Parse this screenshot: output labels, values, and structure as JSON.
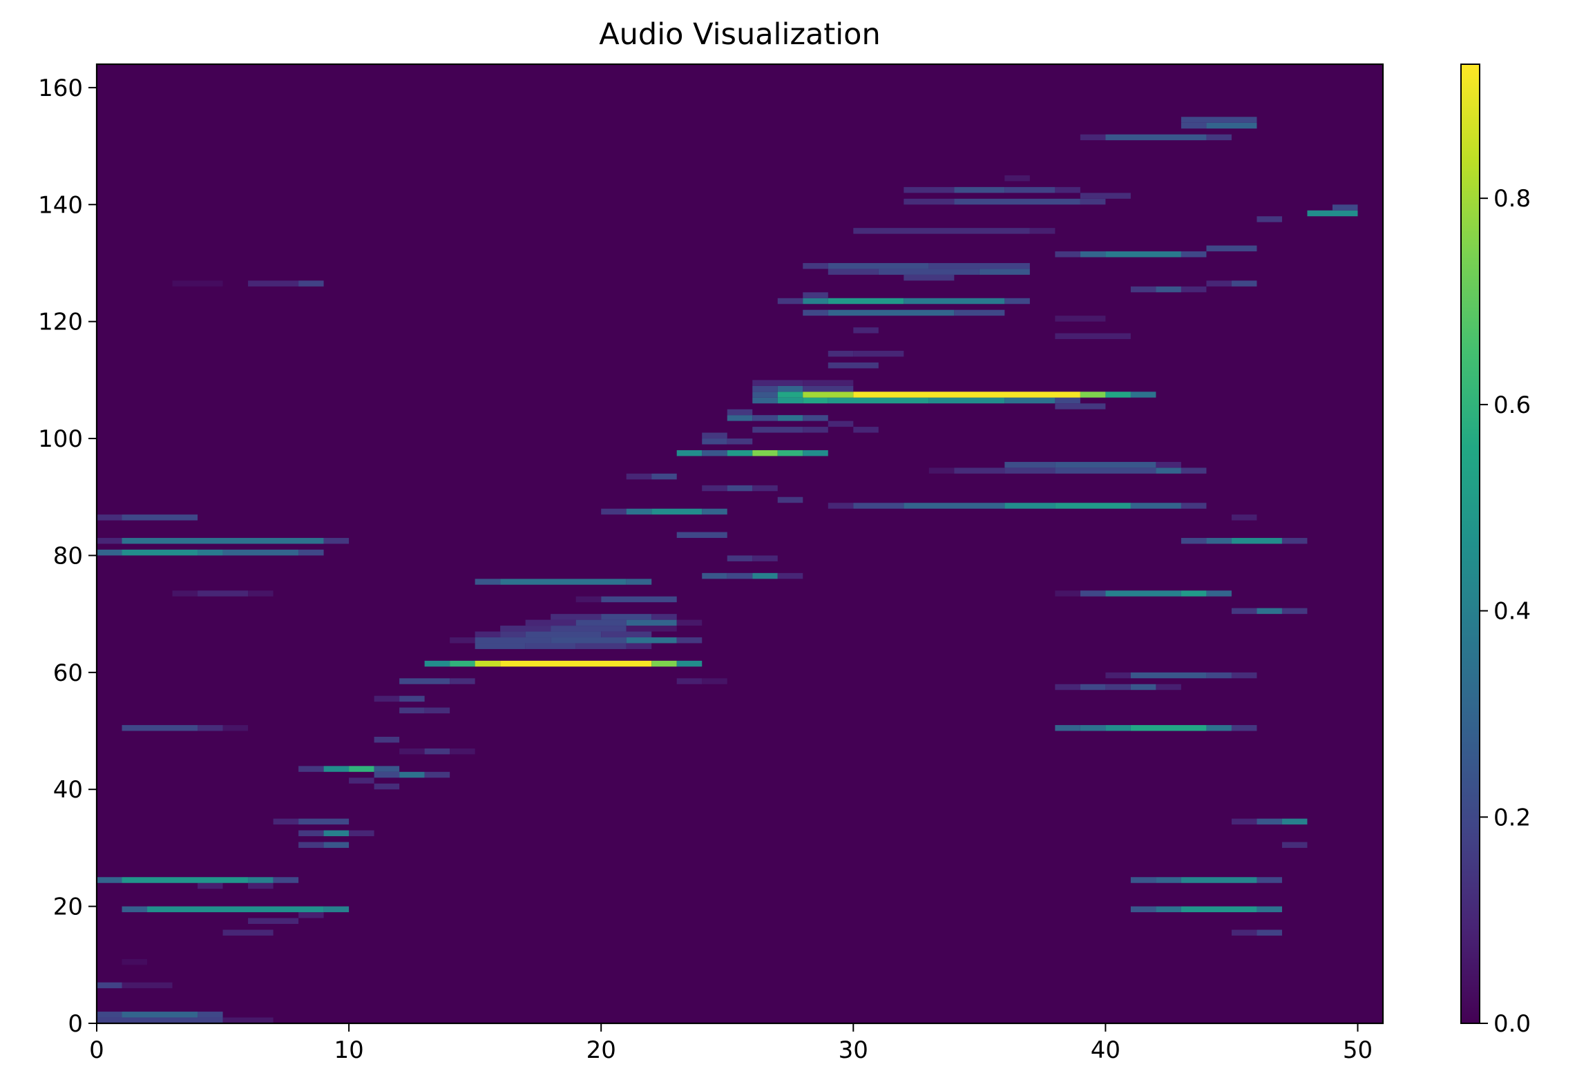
{
  "chart_data": {
    "type": "heatmap",
    "title": "Audio Visualization",
    "xlabel": "",
    "ylabel": "",
    "xlim": [
      0,
      51
    ],
    "ylim": [
      0,
      164
    ],
    "x_ticks": [
      0,
      10,
      20,
      30,
      40,
      50
    ],
    "y_ticks": [
      0,
      20,
      40,
      60,
      80,
      100,
      120,
      140,
      160
    ],
    "colorbar": {
      "colormap": "viridis",
      "range": [
        0.0,
        0.93
      ],
      "ticks": [
        0.0,
        0.2,
        0.4,
        0.6,
        0.8
      ],
      "tick_labels": [
        "0.0",
        "0.2",
        "0.4",
        "0.6",
        "0.8"
      ]
    },
    "background_value": 0.0,
    "grid": false,
    "cells_format": "[x_start, x_end, y_bin, value]",
    "cells": [
      [
        0,
        5,
        0,
        0.18
      ],
      [
        5,
        7,
        0,
        0.06
      ],
      [
        0,
        1,
        1,
        0.2
      ],
      [
        1,
        4,
        1,
        0.3
      ],
      [
        4,
        5,
        1,
        0.2
      ],
      [
        0,
        1,
        6,
        0.18
      ],
      [
        1,
        3,
        6,
        0.06
      ],
      [
        1,
        2,
        10,
        0.03
      ],
      [
        5,
        7,
        15,
        0.1
      ],
      [
        6,
        8,
        17,
        0.1
      ],
      [
        8,
        9,
        18,
        0.08
      ],
      [
        1,
        2,
        19,
        0.28
      ],
      [
        2,
        9,
        19,
        0.46
      ],
      [
        9,
        10,
        19,
        0.4
      ],
      [
        4,
        5,
        23,
        0.08
      ],
      [
        6,
        7,
        23,
        0.08
      ],
      [
        0,
        1,
        24,
        0.3
      ],
      [
        1,
        6,
        24,
        0.48
      ],
      [
        6,
        7,
        24,
        0.4
      ],
      [
        7,
        8,
        24,
        0.2
      ],
      [
        8,
        9,
        30,
        0.15
      ],
      [
        9,
        10,
        30,
        0.25
      ],
      [
        8,
        9,
        32,
        0.15
      ],
      [
        9,
        10,
        32,
        0.4
      ],
      [
        10,
        11,
        32,
        0.1
      ],
      [
        7,
        8,
        34,
        0.1
      ],
      [
        8,
        10,
        34,
        0.2
      ],
      [
        11,
        12,
        40,
        0.12
      ],
      [
        10,
        11,
        41,
        0.1
      ],
      [
        11,
        12,
        42,
        0.2
      ],
      [
        12,
        13,
        42,
        0.35
      ],
      [
        13,
        14,
        42,
        0.15
      ],
      [
        8,
        9,
        43,
        0.15
      ],
      [
        9,
        10,
        43,
        0.45
      ],
      [
        10,
        11,
        43,
        0.6
      ],
      [
        11,
        12,
        43,
        0.25
      ],
      [
        12,
        13,
        46,
        0.05
      ],
      [
        13,
        14,
        46,
        0.15
      ],
      [
        14,
        15,
        46,
        0.05
      ],
      [
        11,
        12,
        48,
        0.15
      ],
      [
        1,
        4,
        50,
        0.2
      ],
      [
        4,
        5,
        50,
        0.12
      ],
      [
        5,
        6,
        50,
        0.05
      ],
      [
        12,
        13,
        53,
        0.15
      ],
      [
        13,
        14,
        53,
        0.12
      ],
      [
        11,
        12,
        55,
        0.08
      ],
      [
        12,
        13,
        55,
        0.18
      ],
      [
        12,
        14,
        58,
        0.2
      ],
      [
        14,
        15,
        58,
        0.12
      ],
      [
        13,
        14,
        61,
        0.45
      ],
      [
        14,
        15,
        61,
        0.6
      ],
      [
        15,
        16,
        61,
        0.85
      ],
      [
        16,
        22,
        61,
        0.92
      ],
      [
        22,
        23,
        61,
        0.75
      ],
      [
        23,
        24,
        61,
        0.45
      ],
      [
        23,
        24,
        58,
        0.08
      ],
      [
        24,
        25,
        58,
        0.05
      ],
      [
        15,
        17,
        64,
        0.2
      ],
      [
        17,
        19,
        64,
        0.18
      ],
      [
        19,
        21,
        64,
        0.15
      ],
      [
        21,
        22,
        64,
        0.1
      ],
      [
        14,
        15,
        65,
        0.06
      ],
      [
        15,
        18,
        65,
        0.2
      ],
      [
        18,
        21,
        65,
        0.22
      ],
      [
        21,
        23,
        65,
        0.35
      ],
      [
        23,
        24,
        65,
        0.15
      ],
      [
        15,
        16,
        66,
        0.1
      ],
      [
        16,
        17,
        66,
        0.15
      ],
      [
        17,
        20,
        66,
        0.2
      ],
      [
        20,
        22,
        66,
        0.15
      ],
      [
        16,
        18,
        67,
        0.12
      ],
      [
        18,
        21,
        67,
        0.18
      ],
      [
        21,
        23,
        67,
        0.06
      ],
      [
        17,
        19,
        68,
        0.1
      ],
      [
        19,
        21,
        68,
        0.2
      ],
      [
        21,
        23,
        68,
        0.3
      ],
      [
        23,
        24,
        68,
        0.06
      ],
      [
        18,
        20,
        69,
        0.12
      ],
      [
        20,
        22,
        69,
        0.2
      ],
      [
        22,
        23,
        69,
        0.12
      ],
      [
        20,
        23,
        72,
        0.2
      ],
      [
        19,
        20,
        72,
        0.05
      ],
      [
        15,
        16,
        75,
        0.25
      ],
      [
        16,
        21,
        75,
        0.35
      ],
      [
        21,
        22,
        75,
        0.3
      ],
      [
        3,
        4,
        73,
        0.05
      ],
      [
        4,
        6,
        73,
        0.1
      ],
      [
        6,
        7,
        73,
        0.05
      ],
      [
        0,
        1,
        80,
        0.3
      ],
      [
        1,
        4,
        80,
        0.45
      ],
      [
        4,
        5,
        80,
        0.38
      ],
      [
        5,
        8,
        80,
        0.3
      ],
      [
        8,
        9,
        80,
        0.2
      ],
      [
        0,
        1,
        82,
        0.1
      ],
      [
        1,
        9,
        82,
        0.35
      ],
      [
        9,
        10,
        82,
        0.15
      ],
      [
        0,
        1,
        86,
        0.12
      ],
      [
        1,
        4,
        86,
        0.2
      ],
      [
        24,
        25,
        76,
        0.25
      ],
      [
        25,
        26,
        76,
        0.2
      ],
      [
        26,
        27,
        76,
        0.4
      ],
      [
        27,
        28,
        76,
        0.1
      ],
      [
        25,
        26,
        79,
        0.15
      ],
      [
        26,
        27,
        79,
        0.1
      ],
      [
        23,
        25,
        83,
        0.2
      ],
      [
        20,
        21,
        87,
        0.15
      ],
      [
        21,
        22,
        87,
        0.35
      ],
      [
        22,
        24,
        87,
        0.45
      ],
      [
        24,
        25,
        87,
        0.3
      ],
      [
        27,
        28,
        89,
        0.15
      ],
      [
        29,
        30,
        88,
        0.1
      ],
      [
        30,
        32,
        88,
        0.2
      ],
      [
        32,
        36,
        88,
        0.3
      ],
      [
        36,
        38,
        88,
        0.45
      ],
      [
        38,
        41,
        88,
        0.5
      ],
      [
        41,
        43,
        88,
        0.3
      ],
      [
        43,
        44,
        88,
        0.15
      ],
      [
        24,
        25,
        91,
        0.1
      ],
      [
        25,
        26,
        91,
        0.2
      ],
      [
        26,
        27,
        91,
        0.1
      ],
      [
        21,
        22,
        93,
        0.1
      ],
      [
        22,
        23,
        93,
        0.2
      ],
      [
        33,
        34,
        94,
        0.05
      ],
      [
        34,
        36,
        94,
        0.12
      ],
      [
        36,
        38,
        94,
        0.15
      ],
      [
        38,
        42,
        94,
        0.2
      ],
      [
        42,
        43,
        94,
        0.3
      ],
      [
        43,
        44,
        94,
        0.15
      ],
      [
        36,
        38,
        95,
        0.22
      ],
      [
        38,
        42,
        95,
        0.25
      ],
      [
        42,
        43,
        95,
        0.1
      ],
      [
        23,
        24,
        97,
        0.45
      ],
      [
        24,
        25,
        97,
        0.25
      ],
      [
        25,
        26,
        97,
        0.5
      ],
      [
        26,
        27,
        97,
        0.75
      ],
      [
        27,
        28,
        97,
        0.6
      ],
      [
        28,
        29,
        97,
        0.45
      ],
      [
        24,
        25,
        99,
        0.2
      ],
      [
        25,
        26,
        99,
        0.15
      ],
      [
        24,
        25,
        100,
        0.15
      ],
      [
        26,
        28,
        101,
        0.15
      ],
      [
        28,
        29,
        101,
        0.12
      ],
      [
        25,
        26,
        103,
        0.3
      ],
      [
        26,
        27,
        103,
        0.2
      ],
      [
        27,
        28,
        103,
        0.35
      ],
      [
        28,
        29,
        103,
        0.2
      ],
      [
        25,
        26,
        104,
        0.15
      ],
      [
        29,
        30,
        102,
        0.1
      ],
      [
        30,
        31,
        101,
        0.1
      ],
      [
        38,
        40,
        105,
        0.15
      ],
      [
        26,
        27,
        106,
        0.3
      ],
      [
        27,
        28,
        106,
        0.5
      ],
      [
        28,
        29,
        106,
        0.55
      ],
      [
        29,
        33,
        106,
        0.5
      ],
      [
        33,
        36,
        106,
        0.45
      ],
      [
        36,
        38,
        106,
        0.35
      ],
      [
        38,
        39,
        106,
        0.2
      ],
      [
        26,
        27,
        107,
        0.25
      ],
      [
        27,
        28,
        107,
        0.55
      ],
      [
        28,
        30,
        107,
        0.8
      ],
      [
        30,
        39,
        107,
        0.92
      ],
      [
        39,
        40,
        107,
        0.75
      ],
      [
        40,
        41,
        107,
        0.55
      ],
      [
        41,
        42,
        107,
        0.35
      ],
      [
        26,
        27,
        108,
        0.2
      ],
      [
        27,
        28,
        108,
        0.3
      ],
      [
        28,
        30,
        108,
        0.15
      ],
      [
        26,
        28,
        109,
        0.1
      ],
      [
        28,
        30,
        109,
        0.08
      ],
      [
        29,
        31,
        112,
        0.15
      ],
      [
        29,
        30,
        114,
        0.12
      ],
      [
        30,
        32,
        114,
        0.1
      ],
      [
        30,
        31,
        118,
        0.1
      ],
      [
        38,
        41,
        117,
        0.08
      ],
      [
        38,
        40,
        120,
        0.06
      ],
      [
        28,
        29,
        121,
        0.2
      ],
      [
        29,
        34,
        121,
        0.3
      ],
      [
        34,
        36,
        121,
        0.2
      ],
      [
        27,
        28,
        123,
        0.15
      ],
      [
        28,
        29,
        123,
        0.4
      ],
      [
        29,
        32,
        123,
        0.5
      ],
      [
        32,
        36,
        123,
        0.38
      ],
      [
        36,
        37,
        123,
        0.2
      ],
      [
        28,
        29,
        124,
        0.15
      ],
      [
        41,
        42,
        125,
        0.15
      ],
      [
        42,
        43,
        125,
        0.25
      ],
      [
        43,
        44,
        125,
        0.1
      ],
      [
        44,
        45,
        126,
        0.1
      ],
      [
        45,
        46,
        126,
        0.2
      ],
      [
        6,
        8,
        126,
        0.1
      ],
      [
        8,
        9,
        126,
        0.18
      ],
      [
        3,
        5,
        126,
        0.03
      ],
      [
        32,
        34,
        127,
        0.15
      ],
      [
        29,
        31,
        128,
        0.15
      ],
      [
        31,
        35,
        128,
        0.2
      ],
      [
        35,
        37,
        128,
        0.25
      ],
      [
        28,
        29,
        129,
        0.15
      ],
      [
        29,
        33,
        129,
        0.22
      ],
      [
        33,
        37,
        129,
        0.18
      ],
      [
        38,
        39,
        131,
        0.15
      ],
      [
        39,
        40,
        131,
        0.3
      ],
      [
        40,
        43,
        131,
        0.38
      ],
      [
        43,
        44,
        131,
        0.2
      ],
      [
        44,
        46,
        132,
        0.2
      ],
      [
        30,
        37,
        135,
        0.12
      ],
      [
        37,
        38,
        135,
        0.08
      ],
      [
        46,
        47,
        137,
        0.15
      ],
      [
        48,
        50,
        138,
        0.45
      ],
      [
        49,
        50,
        139,
        0.2
      ],
      [
        32,
        34,
        140,
        0.12
      ],
      [
        34,
        39,
        140,
        0.2
      ],
      [
        39,
        40,
        140,
        0.15
      ],
      [
        32,
        34,
        142,
        0.12
      ],
      [
        34,
        36,
        142,
        0.22
      ],
      [
        36,
        38,
        142,
        0.18
      ],
      [
        38,
        39,
        142,
        0.1
      ],
      [
        39,
        41,
        141,
        0.12
      ],
      [
        36,
        37,
        144,
        0.06
      ],
      [
        39,
        40,
        151,
        0.1
      ],
      [
        40,
        44,
        151,
        0.25
      ],
      [
        44,
        45,
        151,
        0.15
      ],
      [
        43,
        44,
        153,
        0.2
      ],
      [
        44,
        46,
        153,
        0.3
      ],
      [
        43,
        46,
        154,
        0.2
      ],
      [
        45,
        46,
        15,
        0.1
      ],
      [
        46,
        47,
        15,
        0.18
      ],
      [
        41,
        42,
        19,
        0.25
      ],
      [
        42,
        43,
        19,
        0.35
      ],
      [
        43,
        46,
        19,
        0.48
      ],
      [
        46,
        47,
        19,
        0.35
      ],
      [
        41,
        42,
        24,
        0.25
      ],
      [
        42,
        43,
        24,
        0.3
      ],
      [
        43,
        46,
        24,
        0.42
      ],
      [
        46,
        47,
        24,
        0.2
      ],
      [
        47,
        48,
        30,
        0.12
      ],
      [
        45,
        46,
        34,
        0.1
      ],
      [
        46,
        47,
        34,
        0.25
      ],
      [
        47,
        48,
        34,
        0.4
      ],
      [
        38,
        39,
        50,
        0.3
      ],
      [
        39,
        40,
        50,
        0.35
      ],
      [
        40,
        41,
        50,
        0.45
      ],
      [
        41,
        44,
        50,
        0.55
      ],
      [
        44,
        45,
        50,
        0.35
      ],
      [
        45,
        46,
        50,
        0.15
      ],
      [
        38,
        39,
        57,
        0.1
      ],
      [
        39,
        40,
        57,
        0.2
      ],
      [
        40,
        41,
        57,
        0.15
      ],
      [
        41,
        42,
        57,
        0.25
      ],
      [
        42,
        43,
        57,
        0.08
      ],
      [
        40,
        41,
        59,
        0.08
      ],
      [
        41,
        44,
        59,
        0.25
      ],
      [
        44,
        45,
        59,
        0.2
      ],
      [
        45,
        46,
        59,
        0.12
      ],
      [
        39,
        40,
        73,
        0.2
      ],
      [
        40,
        43,
        73,
        0.4
      ],
      [
        43,
        44,
        73,
        0.5
      ],
      [
        44,
        45,
        73,
        0.3
      ],
      [
        38,
        39,
        73,
        0.05
      ],
      [
        45,
        46,
        70,
        0.15
      ],
      [
        46,
        47,
        70,
        0.35
      ],
      [
        47,
        48,
        70,
        0.15
      ],
      [
        43,
        44,
        82,
        0.2
      ],
      [
        44,
        45,
        82,
        0.3
      ],
      [
        45,
        47,
        82,
        0.45
      ],
      [
        47,
        48,
        82,
        0.15
      ],
      [
        45,
        46,
        86,
        0.08
      ]
    ]
  }
}
